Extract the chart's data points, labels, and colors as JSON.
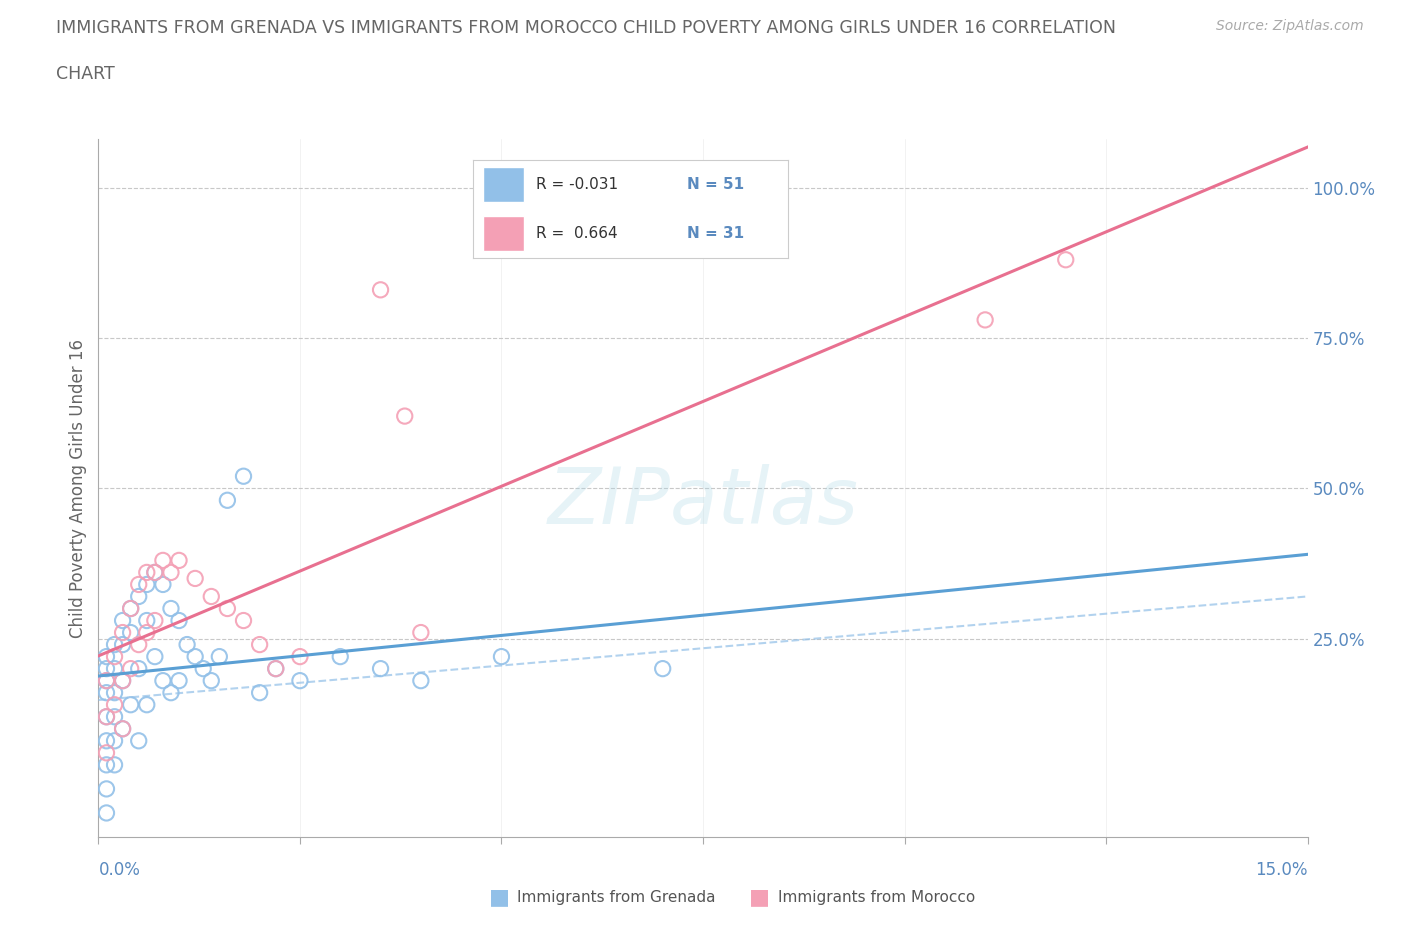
{
  "title_line1": "IMMIGRANTS FROM GRENADA VS IMMIGRANTS FROM MOROCCO CHILD POVERTY AMONG GIRLS UNDER 16 CORRELATION",
  "title_line2": "CHART",
  "source": "Source: ZipAtlas.com",
  "ylabel": "Child Poverty Among Girls Under 16",
  "xmin": 0.0,
  "xmax": 0.15,
  "ymin": -0.08,
  "ymax": 1.08,
  "watermark": "ZIPatlas",
  "grenada_color": "#92c0e8",
  "morocco_color": "#f4a0b5",
  "grenada_line_color": "#5a9fd4",
  "morocco_line_color": "#e87090",
  "grenada_R": -0.031,
  "grenada_N": 51,
  "morocco_R": 0.664,
  "morocco_N": 31,
  "background_color": "#ffffff",
  "grid_color": "#c8c8c8",
  "title_color": "#666666",
  "axis_label_color": "#5a8abf",
  "ytick_positions": [
    0.0,
    0.25,
    0.5,
    0.75,
    1.0
  ],
  "ytick_labels": [
    "",
    "25.0%",
    "50.0%",
    "75.0%",
    "100.0%"
  ],
  "grenada_x": [
    0.001,
    0.001,
    0.001,
    0.001,
    0.001,
    0.001,
    0.001,
    0.001,
    0.001,
    0.002,
    0.002,
    0.002,
    0.002,
    0.002,
    0.002,
    0.003,
    0.003,
    0.003,
    0.003,
    0.004,
    0.004,
    0.004,
    0.005,
    0.005,
    0.005,
    0.006,
    0.006,
    0.006,
    0.007,
    0.007,
    0.008,
    0.008,
    0.009,
    0.009,
    0.01,
    0.01,
    0.011,
    0.012,
    0.013,
    0.014,
    0.015,
    0.016,
    0.018,
    0.02,
    0.022,
    0.025,
    0.03,
    0.035,
    0.04,
    0.05,
    0.07
  ],
  "grenada_y": [
    0.2,
    0.22,
    0.18,
    0.16,
    0.12,
    0.08,
    0.04,
    0.0,
    -0.04,
    0.24,
    0.2,
    0.16,
    0.12,
    0.08,
    0.04,
    0.28,
    0.24,
    0.18,
    0.1,
    0.3,
    0.26,
    0.14,
    0.32,
    0.2,
    0.08,
    0.34,
    0.28,
    0.14,
    0.36,
    0.22,
    0.34,
    0.18,
    0.3,
    0.16,
    0.28,
    0.18,
    0.24,
    0.22,
    0.2,
    0.18,
    0.22,
    0.48,
    0.52,
    0.16,
    0.2,
    0.18,
    0.22,
    0.2,
    0.18,
    0.22,
    0.2
  ],
  "morocco_x": [
    0.001,
    0.001,
    0.001,
    0.002,
    0.002,
    0.003,
    0.003,
    0.003,
    0.004,
    0.004,
    0.005,
    0.005,
    0.006,
    0.006,
    0.007,
    0.007,
    0.008,
    0.009,
    0.01,
    0.012,
    0.014,
    0.016,
    0.018,
    0.02,
    0.022,
    0.025,
    0.035,
    0.038,
    0.04,
    0.11,
    0.12
  ],
  "morocco_y": [
    0.18,
    0.12,
    0.06,
    0.22,
    0.14,
    0.26,
    0.18,
    0.1,
    0.3,
    0.2,
    0.34,
    0.24,
    0.36,
    0.26,
    0.36,
    0.28,
    0.38,
    0.36,
    0.38,
    0.35,
    0.32,
    0.3,
    0.28,
    0.24,
    0.2,
    0.22,
    0.83,
    0.62,
    0.26,
    0.78,
    0.88
  ]
}
